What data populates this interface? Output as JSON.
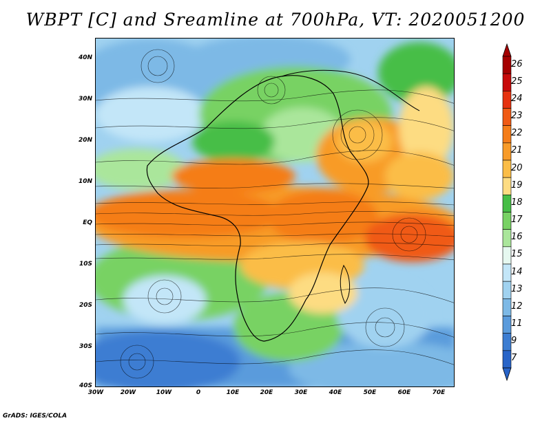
{
  "title": "WBPT [C] and Sreamline at 700hPa, VT: 2020051200",
  "lat_labels": [
    "40N",
    "30N",
    "20N",
    "10N",
    "EQ",
    "10S",
    "20S",
    "30S",
    "40S"
  ],
  "lon_labels": [
    "30W",
    "20W",
    "10W",
    "0",
    "10E",
    "20E",
    "30E",
    "40E",
    "50E",
    "60E",
    "70E"
  ],
  "colorbar": {
    "labels": [
      "26",
      "25",
      "24",
      "23",
      "22",
      "21",
      "20",
      "19",
      "18",
      "17",
      "16",
      "15",
      "14",
      "13",
      "12",
      "11",
      "9",
      "7"
    ],
    "colors": [
      "#a50000",
      "#c80a0a",
      "#e6320f",
      "#f05a14",
      "#f57d19",
      "#f89b28",
      "#fbbd46",
      "#fddc82",
      "#46be46",
      "#78d264",
      "#aae69b",
      "#e6f8f0",
      "#c3e6f8",
      "#a0d2f0",
      "#7db9e6",
      "#5a9bdc",
      "#3c7dd2",
      "#2864c8"
    ]
  },
  "footer": "GrADS: IGES/COLA"
}
